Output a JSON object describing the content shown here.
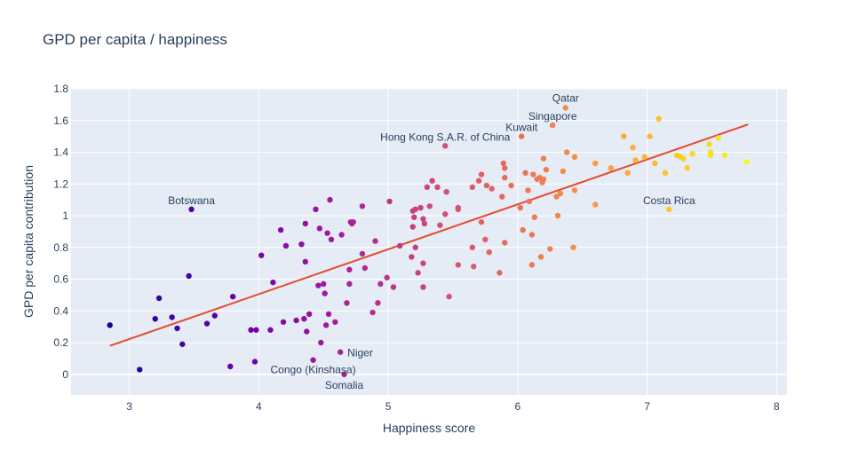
{
  "chart_data": {
    "type": "scatter",
    "title": "GPD per capita / happiness",
    "xlabel": "Happiness score",
    "ylabel": "GPD per capita contribution",
    "xlim": [
      2.55,
      8.08
    ],
    "ylim": [
      -0.13,
      1.8
    ],
    "x_ticks": [
      "3",
      "4",
      "5",
      "6",
      "7",
      "8"
    ],
    "y_ticks": [
      "0",
      "0.2",
      "0.4",
      "0.6",
      "0.8",
      "1",
      "1.2",
      "1.4",
      "1.6",
      "1.8"
    ],
    "grid": true,
    "background": "#e5ecf6",
    "colorscale": [
      "#0d0887",
      "#46039f",
      "#7201a8",
      "#9c179e",
      "#bd3786",
      "#d8576b",
      "#ed7953",
      "#fb9f3a",
      "#fdca26",
      "#f0f921"
    ],
    "trendline": {
      "x": [
        2.85,
        7.78
      ],
      "y": [
        0.18,
        1.575
      ],
      "color": "#e64a2e"
    },
    "points": [
      [
        2.85,
        0.31
      ],
      [
        3.08,
        0.03
      ],
      [
        3.2,
        0.35
      ],
      [
        3.23,
        0.48
      ],
      [
        3.33,
        0.36
      ],
      [
        3.37,
        0.29
      ],
      [
        3.41,
        0.19
      ],
      [
        3.46,
        0.62
      ],
      [
        3.48,
        1.04
      ],
      [
        3.6,
        0.32
      ],
      [
        3.66,
        0.37
      ],
      [
        3.78,
        0.05
      ],
      [
        3.8,
        0.49
      ],
      [
        3.94,
        0.28
      ],
      [
        3.97,
        0.08
      ],
      [
        3.98,
        0.28
      ],
      [
        4.02,
        0.75
      ],
      [
        4.09,
        0.28
      ],
      [
        4.11,
        0.58
      ],
      [
        4.17,
        0.91
      ],
      [
        4.19,
        0.33
      ],
      [
        4.21,
        0.81
      ],
      [
        4.29,
        0.34
      ],
      [
        4.33,
        0.82
      ],
      [
        4.35,
        0.35
      ],
      [
        4.36,
        0.71
      ],
      [
        4.36,
        0.95
      ],
      [
        4.37,
        0.27
      ],
      [
        4.39,
        0.38
      ],
      [
        4.42,
        0.09
      ],
      [
        4.44,
        1.04
      ],
      [
        4.46,
        0.56
      ],
      [
        4.47,
        0.92
      ],
      [
        4.48,
        0.2
      ],
      [
        4.5,
        0.57
      ],
      [
        4.51,
        0.51
      ],
      [
        4.52,
        0.31
      ],
      [
        4.53,
        0.89
      ],
      [
        4.54,
        0.38
      ],
      [
        4.55,
        1.1
      ],
      [
        4.56,
        0.85
      ],
      [
        4.59,
        0.33
      ],
      [
        4.63,
        0.14
      ],
      [
        4.64,
        0.88
      ],
      [
        4.66,
        0.0
      ],
      [
        4.68,
        0.45
      ],
      [
        4.7,
        0.66
      ],
      [
        4.7,
        0.57
      ],
      [
        4.71,
        0.96
      ],
      [
        4.72,
        0.95
      ],
      [
        4.73,
        0.96
      ],
      [
        4.8,
        0.76
      ],
      [
        4.8,
        1.06
      ],
      [
        4.82,
        0.67
      ],
      [
        4.88,
        0.39
      ],
      [
        4.9,
        0.84
      ],
      [
        4.92,
        0.45
      ],
      [
        4.94,
        0.57
      ],
      [
        4.99,
        0.61
      ],
      [
        5.01,
        1.09
      ],
      [
        5.04,
        0.55
      ],
      [
        5.09,
        0.81
      ],
      [
        5.18,
        0.74
      ],
      [
        5.19,
        0.93
      ],
      [
        5.19,
        1.03
      ],
      [
        5.2,
        0.99
      ],
      [
        5.21,
        1.04
      ],
      [
        5.21,
        0.8
      ],
      [
        5.23,
        0.64
      ],
      [
        5.25,
        1.05
      ],
      [
        5.27,
        0.7
      ],
      [
        5.27,
        0.55
      ],
      [
        5.27,
        0.98
      ],
      [
        5.28,
        0.95
      ],
      [
        5.3,
        1.18
      ],
      [
        5.32,
        1.06
      ],
      [
        5.34,
        1.22
      ],
      [
        5.38,
        1.18
      ],
      [
        5.4,
        0.94
      ],
      [
        5.44,
        1.44
      ],
      [
        5.44,
        1.01
      ],
      [
        5.45,
        1.15
      ],
      [
        5.47,
        0.49
      ],
      [
        5.54,
        1.05
      ],
      [
        5.54,
        0.69
      ],
      [
        5.54,
        1.04
      ],
      [
        5.65,
        0.8
      ],
      [
        5.65,
        1.18
      ],
      [
        5.66,
        0.68
      ],
      [
        5.7,
        1.22
      ],
      [
        5.72,
        0.96
      ],
      [
        5.72,
        1.26
      ],
      [
        5.75,
        0.85
      ],
      [
        5.76,
        1.19
      ],
      [
        5.78,
        0.77
      ],
      [
        5.8,
        1.17
      ],
      [
        5.86,
        0.64
      ],
      [
        5.88,
        1.12
      ],
      [
        5.89,
        1.33
      ],
      [
        5.9,
        1.24
      ],
      [
        5.9,
        1.3
      ],
      [
        5.9,
        0.83
      ],
      [
        5.95,
        1.19
      ],
      [
        6.02,
        1.05
      ],
      [
        6.03,
        1.5
      ],
      [
        6.04,
        0.91
      ],
      [
        6.06,
        1.27
      ],
      [
        6.08,
        1.16
      ],
      [
        6.09,
        1.09
      ],
      [
        6.11,
        0.88
      ],
      [
        6.11,
        0.69
      ],
      [
        6.12,
        1.26
      ],
      [
        6.13,
        0.99
      ],
      [
        6.15,
        1.23
      ],
      [
        6.17,
        1.24
      ],
      [
        6.18,
        0.74
      ],
      [
        6.19,
        1.21
      ],
      [
        6.2,
        1.23
      ],
      [
        6.2,
        1.36
      ],
      [
        6.22,
        1.29
      ],
      [
        6.25,
        0.79
      ],
      [
        6.27,
        1.57
      ],
      [
        6.3,
        1.12
      ],
      [
        6.31,
        1.0
      ],
      [
        6.33,
        1.14
      ],
      [
        6.35,
        1.28
      ],
      [
        6.37,
        1.68
      ],
      [
        6.38,
        1.4
      ],
      [
        6.43,
        0.8
      ],
      [
        6.44,
        1.37
      ],
      [
        6.44,
        1.16
      ],
      [
        6.6,
        1.07
      ],
      [
        6.6,
        1.33
      ],
      [
        6.72,
        1.3
      ],
      [
        6.82,
        1.5
      ],
      [
        6.85,
        1.27
      ],
      [
        6.89,
        1.43
      ],
      [
        6.91,
        1.35
      ],
      [
        6.98,
        1.37
      ],
      [
        7.02,
        1.5
      ],
      [
        7.06,
        1.33
      ],
      [
        7.09,
        1.61
      ],
      [
        7.14,
        1.27
      ],
      [
        7.17,
        1.04
      ],
      [
        7.23,
        1.38
      ],
      [
        7.26,
        1.37
      ],
      [
        7.28,
        1.36
      ],
      [
        7.31,
        1.3
      ],
      [
        7.35,
        1.39
      ],
      [
        7.48,
        1.45
      ],
      [
        7.49,
        1.38
      ],
      [
        7.49,
        1.4
      ],
      [
        7.55,
        1.49
      ],
      [
        7.6,
        1.38
      ],
      [
        7.77,
        1.34
      ]
    ],
    "annotations": [
      {
        "text": "Qatar",
        "x": 6.37,
        "y": 1.68,
        "anchor": "middle",
        "dx": 0,
        "dy": -7
      },
      {
        "text": "Singapore",
        "x": 6.27,
        "y": 1.57,
        "anchor": "middle",
        "dx": 0,
        "dy": -6
      },
      {
        "text": "Kuwait",
        "x": 6.03,
        "y": 1.5,
        "anchor": "middle",
        "dx": 0,
        "dy": -6
      },
      {
        "text": "Hong Kong S.A.R. of China",
        "x": 5.44,
        "y": 1.44,
        "anchor": "middle",
        "dx": 0,
        "dy": -6
      },
      {
        "text": "Botswana",
        "x": 3.48,
        "y": 1.04,
        "anchor": "middle",
        "dx": 0,
        "dy": -6
      },
      {
        "text": "Costa Rica",
        "x": 7.17,
        "y": 1.04,
        "anchor": "middle",
        "dx": 0,
        "dy": -6
      },
      {
        "text": "Niger",
        "x": 4.63,
        "y": 0.14,
        "anchor": "start",
        "dx": 8,
        "dy": 5
      },
      {
        "text": "Congo (Kinshasa)",
        "x": 4.42,
        "y": 0.09,
        "anchor": "middle",
        "dx": 0,
        "dy": 15
      },
      {
        "text": "Somalia",
        "x": 4.66,
        "y": 0.0,
        "anchor": "middle",
        "dx": 0,
        "dy": 16
      }
    ]
  }
}
